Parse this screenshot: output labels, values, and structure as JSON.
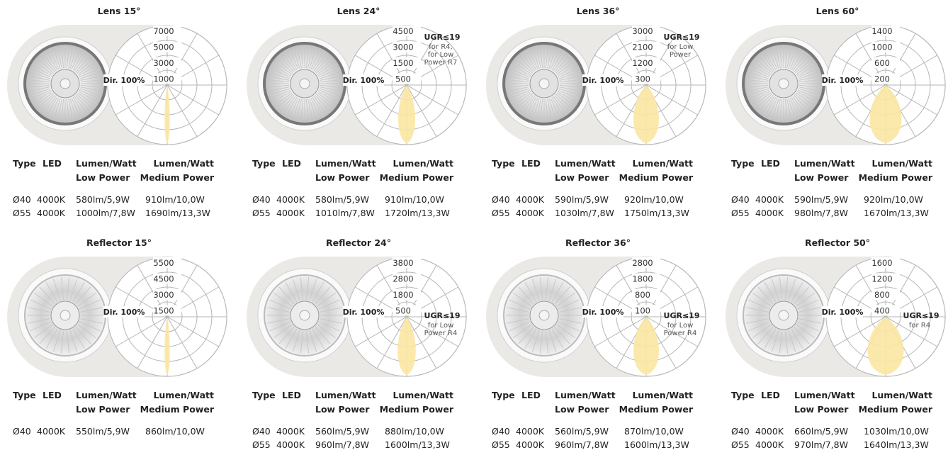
{
  "panels": [
    {
      "title": "Lens 15°",
      "rings": [
        7000,
        5000,
        3000,
        1000
      ],
      "dir": "Dir. 100%",
      "header": {
        "type": "Type",
        "led": "LED",
        "low": [
          "Lumen/Watt",
          "Low Power"
        ],
        "medium": [
          "Lumen/Watt",
          "Medium Power"
        ]
      },
      "rows": [
        [
          "Ø40",
          "4000K",
          "580lm/5,9W",
          "910lm/10,0W"
        ],
        [
          "Ø55",
          "4000K",
          "1000lm/7,8W",
          "1690lm/13,3W"
        ]
      ]
    },
    {
      "title": "Lens 24°",
      "rings": [
        4500,
        3000,
        1500,
        500
      ],
      "dir": "Dir. 100%",
      "ugr": {
        "title": "UGR≤19",
        "lines": [
          "for R4,",
          "for Low",
          "Power R7"
        ]
      },
      "header": {
        "type": "Type",
        "led": "LED",
        "low": [
          "Lumen/Watt",
          "Low Power"
        ],
        "medium": [
          "Lumen/Watt",
          "Medium Power"
        ]
      },
      "rows": [
        [
          "Ø40",
          "4000K",
          "580lm/5,9W",
          "910lm/10,0W"
        ],
        [
          "Ø55",
          "4000K",
          "1010lm/7,8W",
          "1720lm/13,3W"
        ]
      ]
    },
    {
      "title": "Lens 36°",
      "rings": [
        3000,
        2100,
        1200,
        300
      ],
      "dir": "Dir. 100%",
      "ugr": {
        "title": "UGR≤19",
        "lines": [
          "for Low",
          "Power"
        ]
      },
      "header": {
        "type": "Type",
        "led": "LED",
        "low": [
          "Lumen/Watt",
          "Low Power"
        ],
        "medium": [
          "Lumen/Watt",
          "Medium Power"
        ]
      },
      "rows": [
        [
          "Ø40",
          "4000K",
          "590lm/5,9W",
          "920lm/10,0W"
        ],
        [
          "Ø55",
          "4000K",
          "1030lm/7,8W",
          "1750lm/13,3W"
        ]
      ]
    },
    {
      "title": "Lens 60°",
      "rings": [
        1400,
        1000,
        600,
        200
      ],
      "dir": "Dir. 100%",
      "header": {
        "type": "Type",
        "led": "LED",
        "low": [
          "Lumen/Watt",
          "Low Power"
        ],
        "medium": [
          "Lumen/Watt",
          "Medium Power"
        ]
      },
      "rows": [
        [
          "Ø40",
          "4000K",
          "590lm/5,9W",
          "920lm/10,0W"
        ],
        [
          "Ø55",
          "4000K",
          "980lm/7,8W",
          "1670lm/13,3W"
        ]
      ]
    },
    {
      "title": "Reflector 15°",
      "rings": [
        5500,
        4500,
        3000,
        1500
      ],
      "dir": "Dir. 100%",
      "header": {
        "type": "Type",
        "led": "LED",
        "low": [
          "Lumen/Watt",
          "Low Power"
        ],
        "medium": [
          "Lumen/Watt",
          "Medium Power"
        ]
      },
      "rows": [
        [
          "Ø40",
          "4000K",
          "550lm/5,9W",
          "860lm/10,0W"
        ]
      ]
    },
    {
      "title": "Reflector 24°",
      "rings": [
        3800,
        2800,
        1800,
        500
      ],
      "dir": "Dir. 100%",
      "ugr": {
        "title": "UGR≤19",
        "lines": [
          "for Low",
          "Power R4"
        ]
      },
      "header": {
        "type": "Type",
        "led": "LED",
        "low": [
          "Lumen/Watt",
          "Low Power"
        ],
        "medium": [
          "Lumen/Watt",
          "Medium Power"
        ]
      },
      "rows": [
        [
          "Ø40",
          "4000K",
          "560lm/5,9W",
          "880lm/10,0W"
        ],
        [
          "Ø55",
          "4000K",
          "960lm/7,8W",
          "1600lm/13,3W"
        ]
      ]
    },
    {
      "title": "Reflector 36°",
      "rings": [
        2800,
        1800,
        800,
        100
      ],
      "dir": "Dir. 100%",
      "ugr": {
        "title": "UGR≤19",
        "lines": [
          "for Low",
          "Power R4"
        ]
      },
      "header": {
        "type": "Type",
        "led": "LED",
        "low": [
          "Lumen/Watt",
          "Low Power"
        ],
        "medium": [
          "Lumen/Watt",
          "Medium Power"
        ]
      },
      "rows": [
        [
          "Ø40",
          "4000K",
          "560lm/5,9W",
          "870lm/10,0W"
        ],
        [
          "Ø55",
          "4000K",
          "960lm/7,8W",
          "1600lm/13,3W"
        ]
      ]
    },
    {
      "title": "Reflector 50°",
      "rings": [
        1600,
        1200,
        800,
        400
      ],
      "dir": "Dir. 100%",
      "ugr": {
        "title": "UGR≤19",
        "lines": [
          "for R4"
        ]
      },
      "header": {
        "type": "Type",
        "led": "LED",
        "low": [
          "Lumen/Watt",
          "Low Power"
        ],
        "medium": [
          "Lumen/Watt",
          "Medium Power"
        ]
      },
      "rows": [
        [
          "Ø40",
          "4000K",
          "660lm/5,9W",
          "1030lm/10,0W"
        ],
        [
          "Ø55",
          "4000K",
          "970lm/7,8W",
          "1640lm/13,3W"
        ]
      ]
    }
  ]
}
